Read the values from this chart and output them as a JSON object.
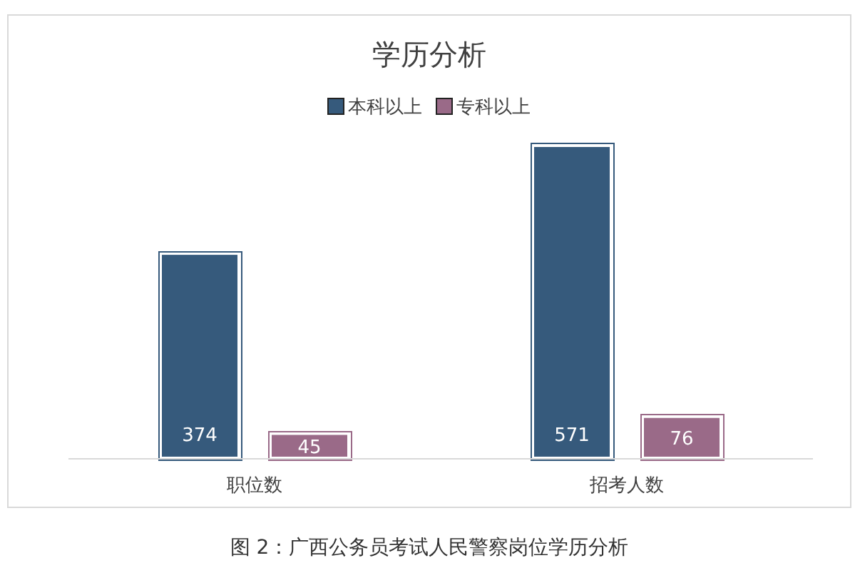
{
  "chart_data": {
    "type": "bar",
    "title": "学历分析",
    "categories": [
      "职位数",
      "招考人数"
    ],
    "series": [
      {
        "name": "本科以上",
        "color": "#365a7c",
        "values": [
          374,
          571
        ]
      },
      {
        "name": "专科以上",
        "color": "#9a6a88",
        "values": [
          45,
          76
        ]
      }
    ],
    "data_labels": true,
    "legend": "top",
    "annotations": [
      "图 2：广西公务员考试人民警察岗位学历分析"
    ]
  }
}
